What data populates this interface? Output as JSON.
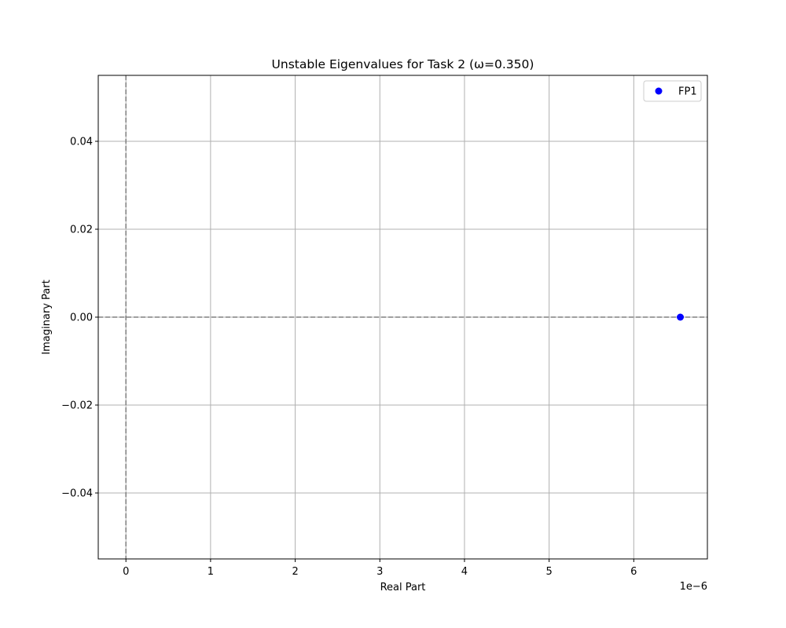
{
  "chart_data": {
    "type": "scatter",
    "title": "Unstable Eigenvalues for Task 2 (ω=0.350)",
    "xlabel": "Real Part",
    "ylabel": "Imaginary Part",
    "x_offset_text": "1e−6",
    "x_scale": 1e-06,
    "xlim": [
      -3.27e-07,
      6.87e-06
    ],
    "ylim": [
      -0.055,
      0.055
    ],
    "x_ticks": [
      0,
      1e-06,
      2e-06,
      3e-06,
      4e-06,
      5e-06,
      6e-06
    ],
    "x_tick_labels": [
      "0",
      "1",
      "2",
      "3",
      "4",
      "5",
      "6"
    ],
    "y_ticks": [
      -0.04,
      -0.02,
      0.0,
      0.02,
      0.04
    ],
    "y_tick_labels": [
      "−0.04",
      "−0.02",
      "0.00",
      "0.02",
      "0.04"
    ],
    "grid": true,
    "reference_lines": [
      {
        "orientation": "vertical",
        "value": 0,
        "style": "dashed",
        "color": "#808080"
      },
      {
        "orientation": "horizontal",
        "value": 0,
        "style": "dashed",
        "color": "#808080"
      }
    ],
    "legend_position": "top-right",
    "series": [
      {
        "name": "FP1",
        "color": "#0000ff",
        "points": [
          {
            "x": 6.55e-06,
            "y": 0.0
          }
        ]
      }
    ]
  }
}
